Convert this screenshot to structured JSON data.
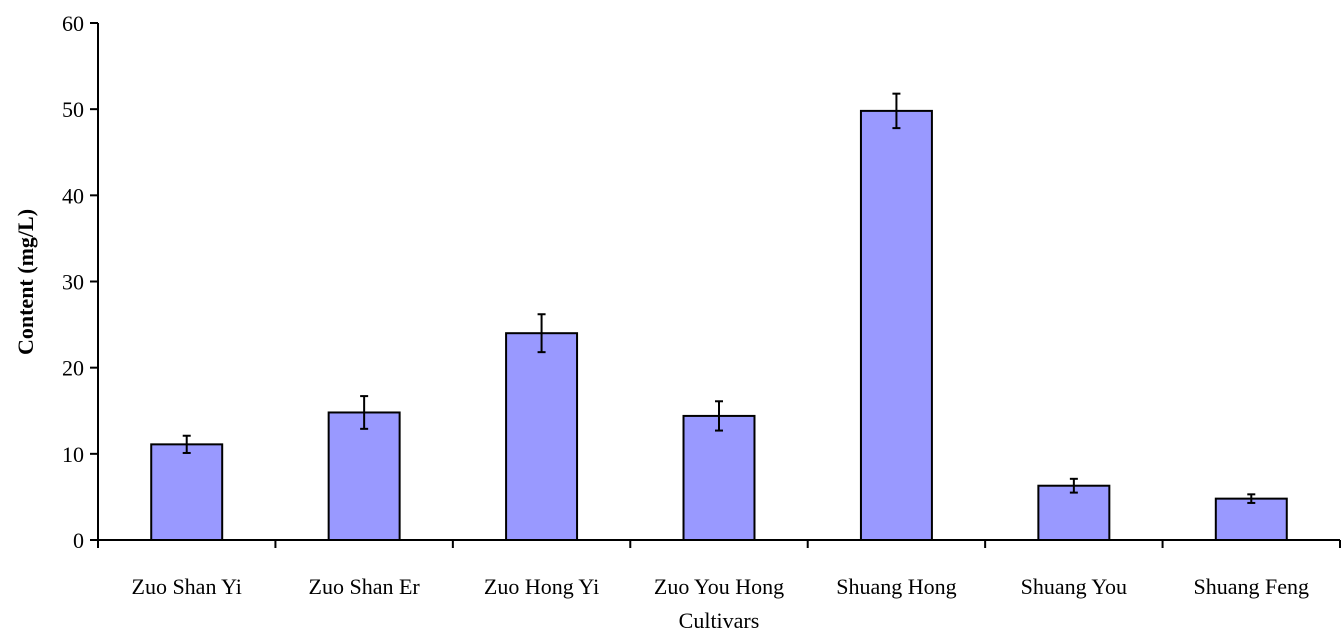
{
  "chart_data": {
    "type": "bar",
    "title": "",
    "xlabel": "Cultivars",
    "ylabel": "Content (mg/L)",
    "ylim": [
      0,
      60
    ],
    "yticks": [
      0,
      10,
      20,
      30,
      40,
      50,
      60
    ],
    "categories": [
      "Zuo Shan Yi",
      "Zuo Shan Er",
      "Zuo Hong Yi",
      "Zuo You Hong",
      "Shuang Hong",
      "Shuang You",
      "Shuang Feng"
    ],
    "values": [
      11.1,
      14.8,
      24.0,
      14.4,
      49.8,
      6.3,
      4.8
    ],
    "errors": [
      1.0,
      1.9,
      2.2,
      1.7,
      2.0,
      0.8,
      0.5
    ],
    "bar_color": "#9999ff",
    "grid": false,
    "legend": "none"
  }
}
